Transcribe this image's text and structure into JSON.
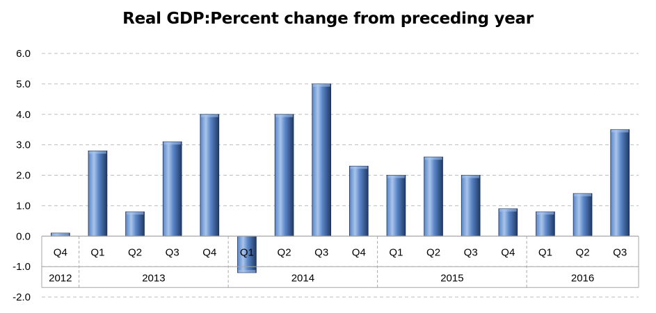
{
  "chart_data": {
    "type": "bar",
    "title": "Real GDP:Percent change from preceding year",
    "xlabel": "",
    "ylabel": "",
    "ylim": [
      -2.0,
      6.0
    ],
    "yticks": [
      "6.0",
      "5.0",
      "4.0",
      "3.0",
      "2.0",
      "1.0",
      "0.0",
      "-1.0",
      "-2.0"
    ],
    "categories": [
      "Q4",
      "Q1",
      "Q2",
      "Q3",
      "Q4",
      "Q1",
      "Q2",
      "Q3",
      "Q4",
      "Q1",
      "Q2",
      "Q3",
      "Q4",
      "Q1",
      "Q2",
      "Q3"
    ],
    "values": [
      0.1,
      2.8,
      0.8,
      3.1,
      4.0,
      -1.2,
      4.0,
      5.0,
      2.3,
      2.0,
      2.6,
      2.0,
      0.9,
      0.8,
      1.4,
      3.5
    ],
    "year_groups": [
      {
        "label": "2012",
        "count": 1
      },
      {
        "label": "2013",
        "count": 4
      },
      {
        "label": "2014",
        "count": 4
      },
      {
        "label": "2015",
        "count": 4
      },
      {
        "label": "2016",
        "count": 3
      }
    ],
    "grid": true,
    "legend": "none",
    "colors": {
      "bar_light": "#a9c4ea",
      "bar_mid": "#5a86c8",
      "bar_dark": "#1f3a66",
      "bar_edge": "#1a2f55",
      "grid": "#bdbdbd",
      "axis": "#a6a6a6",
      "text": "#000000"
    }
  }
}
